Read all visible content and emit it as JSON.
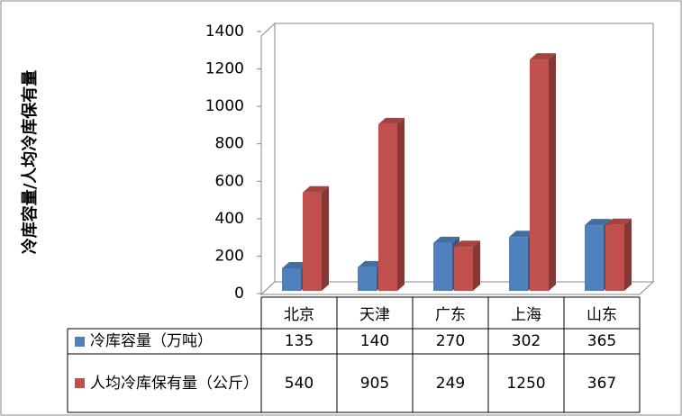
{
  "chart_data": {
    "type": "bar3d",
    "y_label": "冷库容量/人均冷库保有量",
    "categories": [
      "北京",
      "天津",
      "广东",
      "上海",
      "山东"
    ],
    "series": [
      {
        "name": "冷库容量（万吨）",
        "color": "#4f81bd",
        "values": [
          135,
          140,
          270,
          302,
          365
        ]
      },
      {
        "name": "人均冷库保有量（公斤）",
        "color": "#c0504d",
        "values": [
          540,
          905,
          249,
          1250,
          367
        ]
      }
    ],
    "ylim": [
      0,
      1400
    ],
    "yticks": [
      0,
      200,
      400,
      600,
      800,
      1000,
      1200,
      1400
    ],
    "grid": false,
    "data_table": true
  }
}
